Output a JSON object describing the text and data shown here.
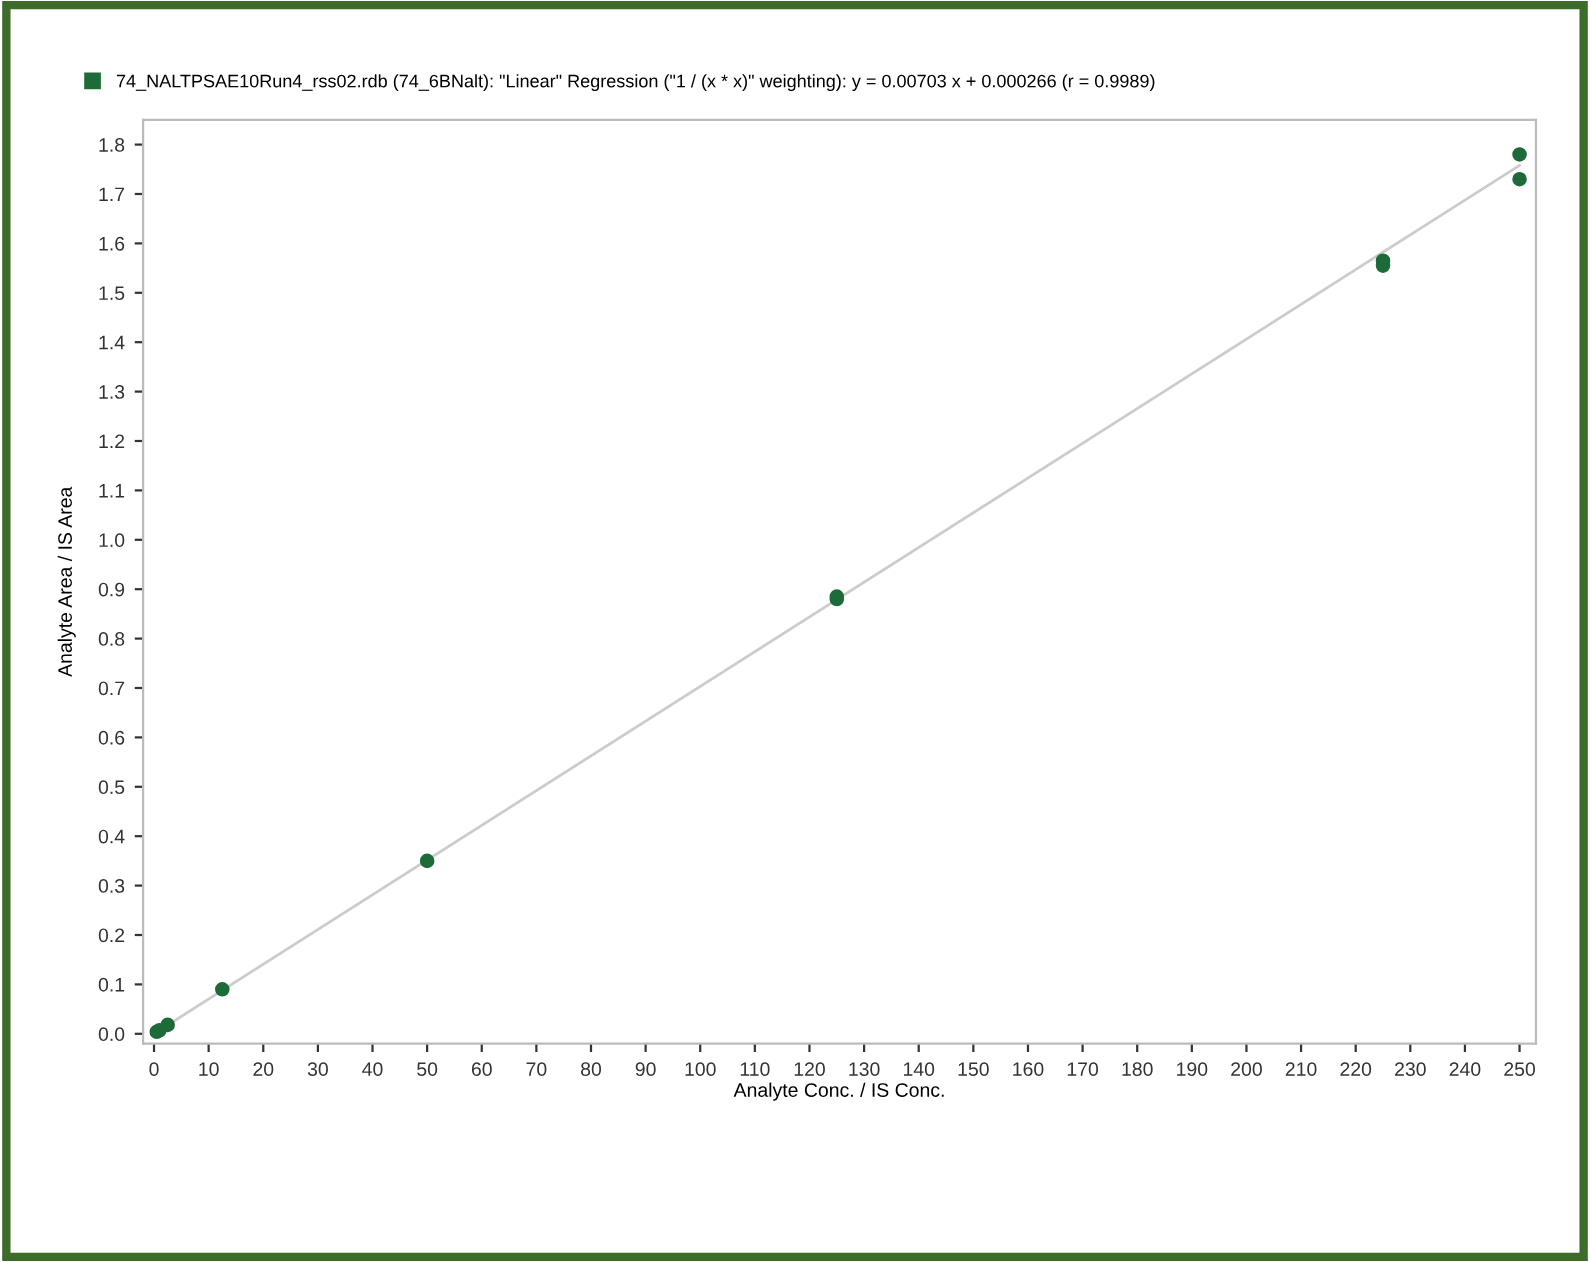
{
  "chart_data": {
    "type": "scatter",
    "xlabel": "Analyte Conc. / IS Conc.",
    "ylabel": "Analyte Area / IS Area",
    "series": [
      {
        "name": "74_NALTPSAE10Run4_rss02.rdb (74_6BNalt): \"Linear\" Regression (\"1 / (x * x)\" weighting): y = 0.00703 x + 0.000266 (r = 0.9989)",
        "color": "#1e6b3a",
        "marker": "circle",
        "x": [
          0.5,
          1,
          2.5,
          12.5,
          50,
          125,
          125,
          225,
          225,
          250,
          250
        ],
        "values": [
          0.004,
          0.007,
          0.018,
          0.09,
          0.35,
          0.88,
          0.885,
          1.555,
          1.565,
          1.73,
          1.78
        ]
      },
      {
        "color": "#cccccc",
        "type": "line",
        "x": [
          0,
          250
        ],
        "values": [
          0.0,
          1.758
        ]
      }
    ],
    "xlim": [
      -2,
      253
    ],
    "ylim": [
      -0.02,
      1.85
    ],
    "xticks": [
      0,
      10,
      20,
      30,
      40,
      50,
      60,
      70,
      80,
      90,
      100,
      110,
      120,
      130,
      140,
      150,
      160,
      170,
      180,
      190,
      200,
      210,
      220,
      230,
      240,
      250
    ],
    "yticks": [
      {
        "value": 0,
        "label": "0.0"
      },
      0.1,
      0.2,
      0.3,
      0.4,
      0.5,
      0.6,
      0.7,
      0.8,
      0.9,
      {
        "value": 1,
        "label": "1.0"
      },
      1.1,
      1.2,
      1.3,
      1.4,
      1.5,
      1.6,
      1.7,
      1.8
    ],
    "legend": "top left",
    "grid": false
  }
}
